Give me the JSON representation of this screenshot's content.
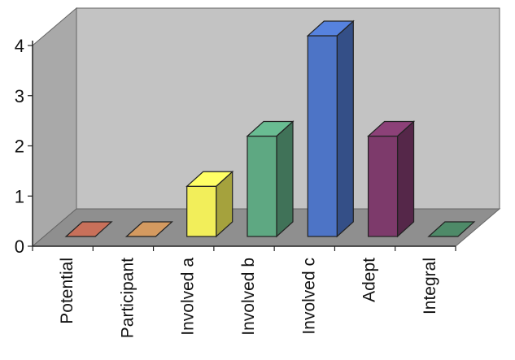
{
  "chart_data": {
    "type": "bar",
    "categories": [
      "Potential",
      "Participant",
      "Involved a",
      "Involved b",
      "Involved c",
      "Adept",
      "Integral"
    ],
    "values": [
      0,
      0,
      1,
      2,
      4,
      2,
      0
    ],
    "ylim": [
      0,
      4
    ],
    "yticks": [
      "0",
      "1",
      "2",
      "3",
      "4"
    ],
    "grid": false,
    "legend": "none",
    "three_d": true,
    "colors": {
      "wall": "#c3c3c3",
      "wall_side": "#a9a9a9",
      "floor": "#8f8f8f",
      "bars": [
        "#c8705a",
        "#d49a60",
        "#f2ee5a",
        "#5ea882",
        "#4d74c6",
        "#7d3a6b",
        "#4e8a68"
      ]
    }
  }
}
